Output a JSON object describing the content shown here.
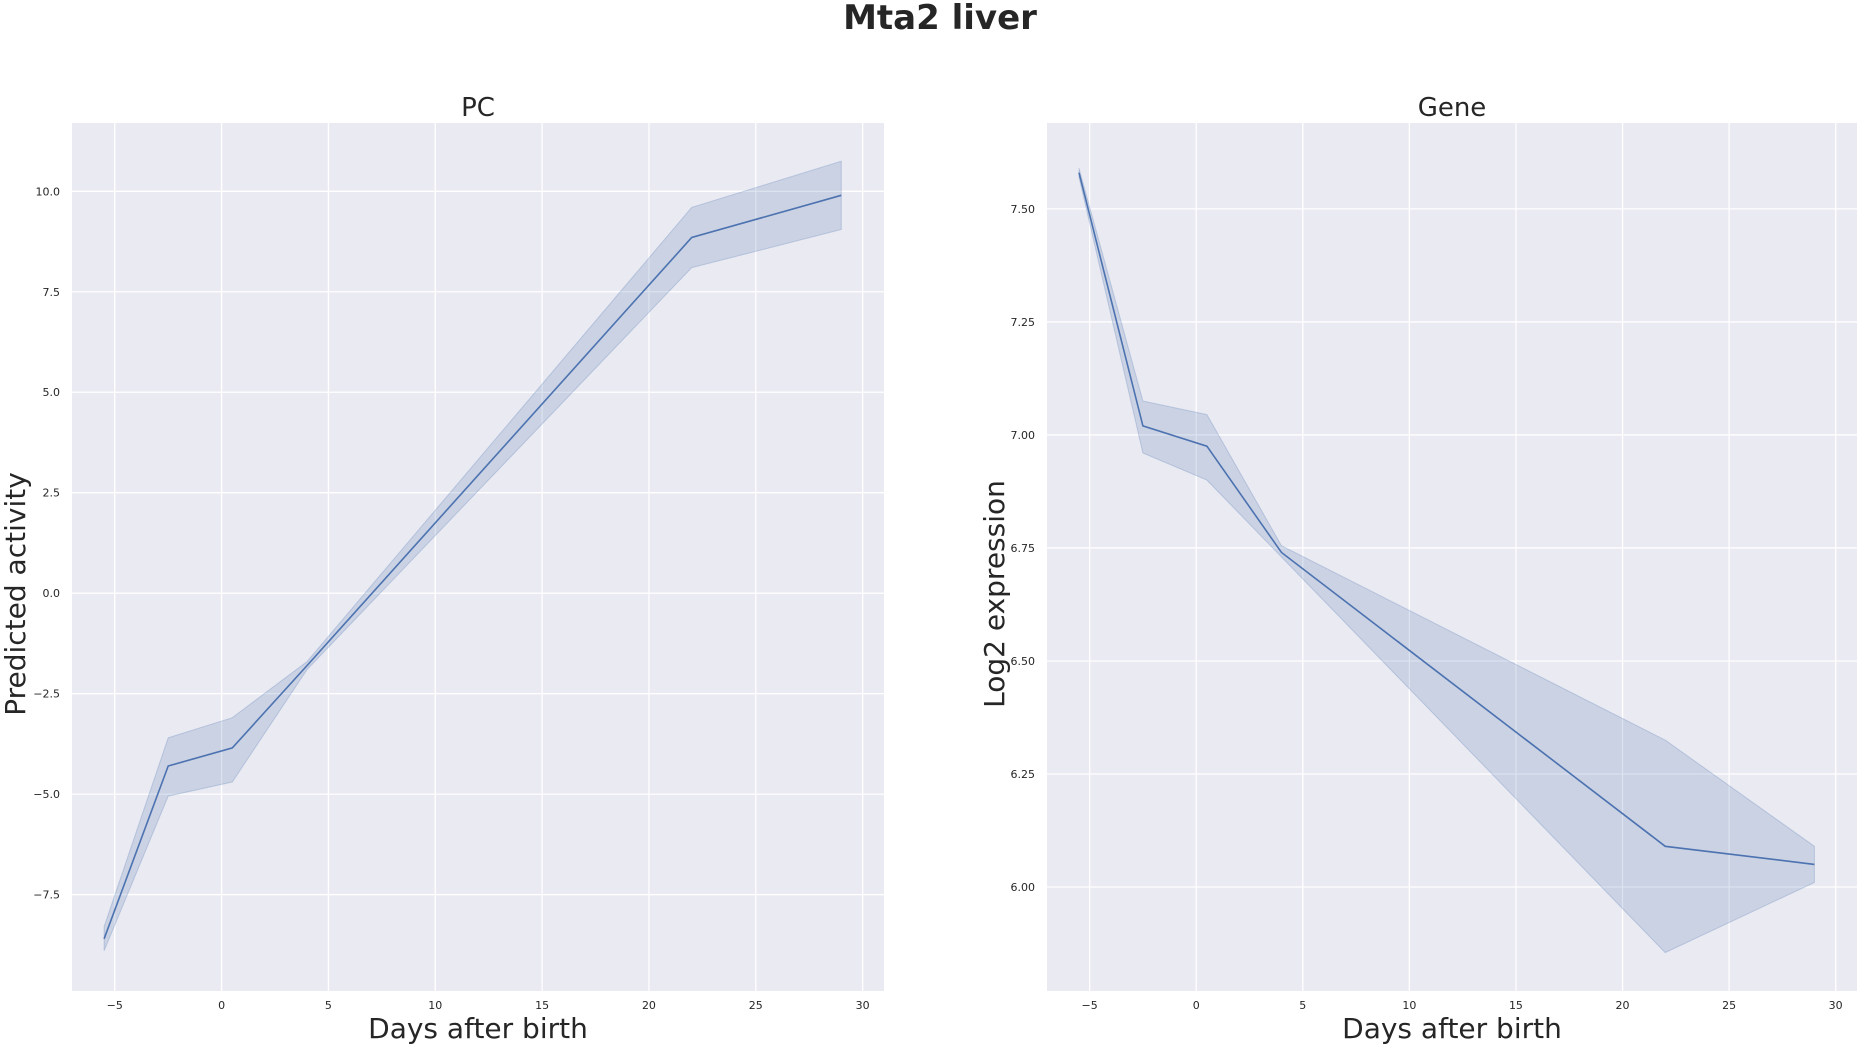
{
  "figure": {
    "title": "Mta2 liver"
  },
  "colors": {
    "background": "#eaeaf2",
    "grid": "#ffffff",
    "series": "#4c72b0"
  },
  "chart_data": [
    {
      "type": "line",
      "title": "PC",
      "xlabel": "Days after birth",
      "ylabel": "Predicted activity",
      "grid": true,
      "xlim": [
        -7,
        31
      ],
      "ylim": [
        -9.9,
        11.7
      ],
      "xticks": [
        -5,
        0,
        5,
        10,
        15,
        20,
        25,
        30
      ],
      "xtick_labels": [
        "−5",
        "0",
        "5",
        "10",
        "15",
        "20",
        "25",
        "30"
      ],
      "yticks": [
        -7.5,
        -5.0,
        -2.5,
        0.0,
        2.5,
        5.0,
        7.5,
        10.0
      ],
      "ytick_labels": [
        "−7.5",
        "−5.0",
        "−2.5",
        "0.0",
        "2.5",
        "5.0",
        "7.5",
        "10.0"
      ],
      "series": [
        {
          "x": [
            -5.5,
            -2.5,
            0.5,
            4,
            22,
            29
          ],
          "y": [
            -8.6,
            -4.3,
            -3.85,
            -1.8,
            8.85,
            9.9
          ],
          "ci_low": [
            -8.9,
            -5.05,
            -4.7,
            -1.9,
            8.1,
            9.05
          ],
          "ci_high": [
            -8.3,
            -3.6,
            -3.1,
            -1.7,
            9.6,
            10.75
          ]
        }
      ]
    },
    {
      "type": "line",
      "title": "Gene",
      "xlabel": "Days after birth",
      "ylabel": "Log2 expression",
      "grid": true,
      "xlim": [
        -7,
        31
      ],
      "ylim": [
        5.77,
        7.69
      ],
      "xticks": [
        -5,
        0,
        5,
        10,
        15,
        20,
        25,
        30
      ],
      "xtick_labels": [
        "−5",
        "0",
        "5",
        "10",
        "15",
        "20",
        "25",
        "30"
      ],
      "yticks": [
        6.0,
        6.25,
        6.5,
        6.75,
        7.0,
        7.25,
        7.5
      ],
      "ytick_labels": [
        "6.00",
        "6.25",
        "6.50",
        "6.75",
        "7.00",
        "7.25",
        "7.50"
      ],
      "series": [
        {
          "x": [
            -5.5,
            -2.5,
            0.5,
            4,
            22,
            29
          ],
          "y": [
            7.58,
            7.02,
            6.975,
            6.74,
            6.09,
            6.05
          ],
          "ci_low": [
            7.57,
            6.96,
            6.9,
            6.73,
            5.855,
            6.01
          ],
          "ci_high": [
            7.59,
            7.075,
            7.045,
            6.755,
            6.325,
            6.09
          ]
        }
      ]
    }
  ]
}
